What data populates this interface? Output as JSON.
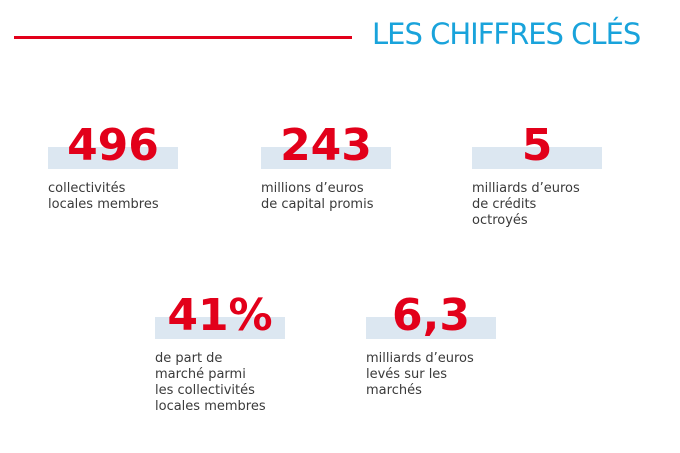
{
  "header": {
    "title": "LES CHIFFRES CLÉS",
    "accent_color": "#e2001a",
    "title_color": "#19a3db"
  },
  "stats": [
    {
      "value": "496",
      "description": "collectivités\nlocales membres"
    },
    {
      "value": "243",
      "description": "millions d’euros\nde capital promis"
    },
    {
      "value": "5",
      "description": "milliards d’euros\nde crédits\noctroyés"
    },
    {
      "value": "41%",
      "description": "de part de\nmarché parmi\nles collectivités\nlocales membres"
    },
    {
      "value": "6,3",
      "description": "milliards d’euros\nlevés sur les\nmarchés"
    }
  ],
  "colors": {
    "value": "#e2001a",
    "band": "#dce7f1",
    "text": "#3a3a3a"
  }
}
